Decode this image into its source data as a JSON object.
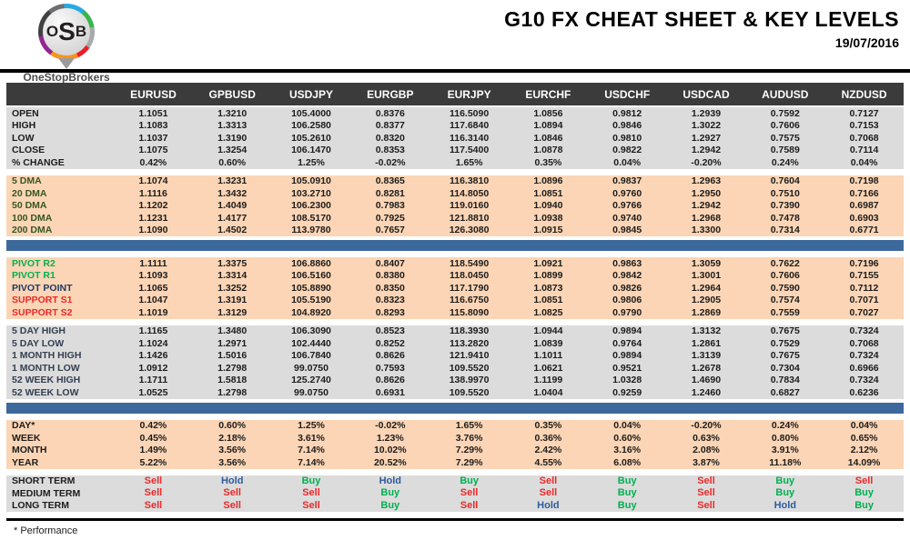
{
  "header": {
    "logo": {
      "letters": [
        "O",
        "S",
        "B"
      ],
      "name": "OneStopBrokers"
    },
    "title": "G10 FX CHEAT SHEET & KEY LEVELS",
    "date": "19/07/2016"
  },
  "colors": {
    "header-bg": "#3b3b3b",
    "gray-bg": "#dcdcdc",
    "peach-bg": "#fbd5b5",
    "bar-blue": "#3d689b",
    "green": "#00b050",
    "red": "#e92a2a",
    "navy": "#1f3864",
    "hold-blue": "#2e5b9e",
    "dark-green": "#375623",
    "blue-gray": "#333f50"
  },
  "table": {
    "columns": [
      "EURUSD",
      "GPBUSD",
      "USDJPY",
      "EURGBP",
      "EURJPY",
      "EURCHF",
      "USDCHF",
      "USDCAD",
      "AUDUSD",
      "NZDUSD"
    ],
    "sections": [
      {
        "id": "ohlc",
        "theme": "gray",
        "after": "gap",
        "rows": [
          {
            "label": "OPEN",
            "values": [
              "1.1051",
              "1.3210",
              "105.4000",
              "0.8376",
              "116.5090",
              "1.0856",
              "0.9812",
              "1.2939",
              "0.7592",
              "0.7127"
            ]
          },
          {
            "label": "HIGH",
            "values": [
              "1.1083",
              "1.3313",
              "106.2580",
              "0.8377",
              "117.6840",
              "1.0894",
              "0.9846",
              "1.3022",
              "0.7606",
              "0.7153"
            ]
          },
          {
            "label": "LOW",
            "values": [
              "1.1037",
              "1.3190",
              "105.2610",
              "0.8320",
              "116.3140",
              "1.0846",
              "0.9810",
              "1.2927",
              "0.7575",
              "0.7068"
            ]
          },
          {
            "label": "CLOSE",
            "values": [
              "1.1075",
              "1.3254",
              "106.1470",
              "0.8353",
              "117.5400",
              "1.0878",
              "0.9822",
              "1.2942",
              "0.7589",
              "0.7114"
            ]
          },
          {
            "label": "% CHANGE",
            "values": [
              "0.42%",
              "0.60%",
              "1.25%",
              "-0.02%",
              "1.65%",
              "0.35%",
              "0.04%",
              "-0.20%",
              "0.24%",
              "0.04%"
            ]
          }
        ]
      },
      {
        "id": "dma",
        "theme": "peach",
        "label_class": "dark-green",
        "after": "blue-bar",
        "rows": [
          {
            "label": "5 DMA",
            "values": [
              "1.1074",
              "1.3231",
              "105.0910",
              "0.8365",
              "116.3810",
              "1.0896",
              "0.9837",
              "1.2963",
              "0.7604",
              "0.7198"
            ]
          },
          {
            "label": "20 DMA",
            "values": [
              "1.1116",
              "1.3432",
              "103.2710",
              "0.8281",
              "114.8050",
              "1.0851",
              "0.9760",
              "1.2950",
              "0.7510",
              "0.7166"
            ]
          },
          {
            "label": "50 DMA",
            "values": [
              "1.1202",
              "1.4049",
              "106.2300",
              "0.7983",
              "119.0160",
              "1.0940",
              "0.9766",
              "1.2942",
              "0.7390",
              "0.6987"
            ]
          },
          {
            "label": "100 DMA",
            "values": [
              "1.1231",
              "1.4177",
              "108.5170",
              "0.7925",
              "121.8810",
              "1.0938",
              "0.9740",
              "1.2968",
              "0.7478",
              "0.6903"
            ]
          },
          {
            "label": "200 DMA",
            "values": [
              "1.1090",
              "1.4502",
              "113.9780",
              "0.7657",
              "126.3080",
              "1.0915",
              "0.9845",
              "1.3300",
              "0.7314",
              "0.6771"
            ]
          }
        ]
      },
      {
        "id": "pivots",
        "theme": "peach",
        "after": "gap",
        "rows": [
          {
            "label": "PIVOT R2",
            "label_color": "green",
            "values": [
              "1.1111",
              "1.3375",
              "106.8860",
              "0.8407",
              "118.5490",
              "1.0921",
              "0.9863",
              "1.3059",
              "0.7622",
              "0.7196"
            ]
          },
          {
            "label": "PIVOT R1",
            "label_color": "green",
            "values": [
              "1.1093",
              "1.3314",
              "106.5160",
              "0.8380",
              "118.0450",
              "1.0899",
              "0.9842",
              "1.3001",
              "0.7606",
              "0.7155"
            ]
          },
          {
            "label": "PIVOT POINT",
            "label_color": "navy",
            "values": [
              "1.1065",
              "1.3252",
              "105.8890",
              "0.8350",
              "117.1790",
              "1.0873",
              "0.9826",
              "1.2964",
              "0.7590",
              "0.7112"
            ]
          },
          {
            "label": "SUPPORT S1",
            "label_color": "red",
            "values": [
              "1.1047",
              "1.3191",
              "105.5190",
              "0.8323",
              "116.6750",
              "1.0851",
              "0.9806",
              "1.2905",
              "0.7574",
              "0.7071"
            ]
          },
          {
            "label": "SUPPORT S2",
            "label_color": "red",
            "values": [
              "1.1019",
              "1.3129",
              "104.8920",
              "0.8293",
              "115.8090",
              "1.0825",
              "0.9790",
              "1.2869",
              "0.7559",
              "0.7027"
            ]
          }
        ]
      },
      {
        "id": "ranges",
        "theme": "gray",
        "label_class": "blue-gray",
        "after": "blue-bar",
        "rows": [
          {
            "label": "5 DAY HIGH",
            "values": [
              "1.1165",
              "1.3480",
              "106.3090",
              "0.8523",
              "118.3930",
              "1.0944",
              "0.9894",
              "1.3132",
              "0.7675",
              "0.7324"
            ]
          },
          {
            "label": "5 DAY LOW",
            "values": [
              "1.1024",
              "1.2971",
              "102.4440",
              "0.8252",
              "113.2820",
              "1.0839",
              "0.9764",
              "1.2861",
              "0.7529",
              "0.7068"
            ]
          },
          {
            "label": "1 MONTH HIGH",
            "values": [
              "1.1426",
              "1.5016",
              "106.7840",
              "0.8626",
              "121.9410",
              "1.1011",
              "0.9894",
              "1.3139",
              "0.7675",
              "0.7324"
            ]
          },
          {
            "label": "1 MONTH LOW",
            "values": [
              "1.0912",
              "1.2798",
              "99.0750",
              "0.7593",
              "109.5520",
              "1.0621",
              "0.9521",
              "1.2678",
              "0.7304",
              "0.6966"
            ]
          },
          {
            "label": "52 WEEK HIGH",
            "values": [
              "1.1711",
              "1.5818",
              "125.2740",
              "0.8626",
              "138.9970",
              "1.1199",
              "1.0328",
              "1.4690",
              "0.7834",
              "0.7324"
            ]
          },
          {
            "label": "52 WEEK LOW",
            "values": [
              "1.0525",
              "1.2798",
              "99.0750",
              "0.6931",
              "109.5520",
              "1.0404",
              "0.9259",
              "1.2460",
              "0.6827",
              "0.6236"
            ]
          }
        ]
      },
      {
        "id": "performance",
        "theme": "peach",
        "after": "gap",
        "rows": [
          {
            "label": "DAY*",
            "values": [
              "0.42%",
              "0.60%",
              "1.25%",
              "-0.02%",
              "1.65%",
              "0.35%",
              "0.04%",
              "-0.20%",
              "0.24%",
              "0.04%"
            ]
          },
          {
            "label": "WEEK",
            "values": [
              "0.45%",
              "2.18%",
              "3.61%",
              "1.23%",
              "3.76%",
              "0.36%",
              "0.60%",
              "0.63%",
              "0.80%",
              "0.65%"
            ]
          },
          {
            "label": "MONTH",
            "values": [
              "1.49%",
              "3.56%",
              "7.14%",
              "10.02%",
              "7.29%",
              "2.42%",
              "3.16%",
              "2.08%",
              "3.91%",
              "2.12%"
            ]
          },
          {
            "label": "YEAR",
            "values": [
              "5.22%",
              "3.56%",
              "7.14%",
              "20.52%",
              "7.29%",
              "4.55%",
              "6.08%",
              "3.87%",
              "11.18%",
              "14.09%"
            ]
          }
        ]
      },
      {
        "id": "signals",
        "theme": "gray",
        "signal": true,
        "rows": [
          {
            "label": "SHORT TERM",
            "values": [
              "Sell",
              "Hold",
              "Buy",
              "Hold",
              "Buy",
              "Sell",
              "Buy",
              "Sell",
              "Buy",
              "Sell"
            ]
          },
          {
            "label": "MEDIUM TERM",
            "values": [
              "Sell",
              "Sell",
              "Sell",
              "Buy",
              "Sell",
              "Sell",
              "Buy",
              "Sell",
              "Buy",
              "Buy"
            ]
          },
          {
            "label": "LONG TERM",
            "values": [
              "Sell",
              "Sell",
              "Sell",
              "Buy",
              "Sell",
              "Hold",
              "Buy",
              "Sell",
              "Hold",
              "Buy"
            ]
          }
        ]
      }
    ]
  },
  "footnote": "* Performance"
}
